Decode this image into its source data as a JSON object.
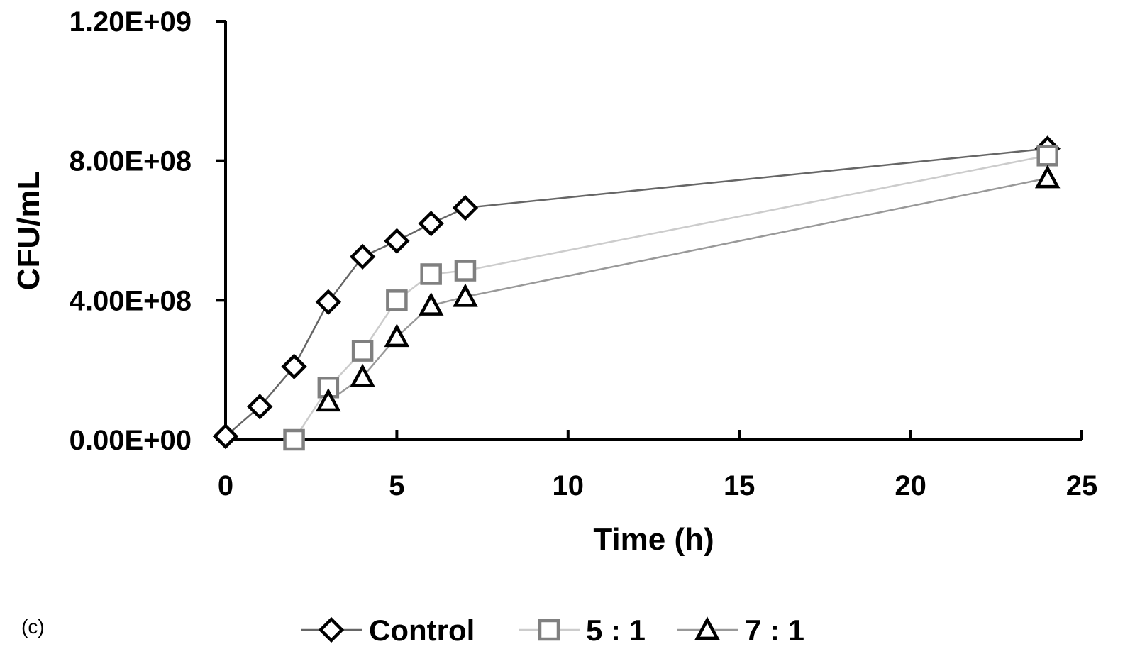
{
  "panel_label": "(c)",
  "chart_data": {
    "type": "line",
    "xlabel": "Time (h)",
    "ylabel": "CFU/mL",
    "xlim": [
      0,
      25
    ],
    "ylim": [
      0,
      1200000000
    ],
    "x_ticks": [
      0,
      5,
      10,
      15,
      20,
      25
    ],
    "x_tick_labels": [
      "0",
      "5",
      "10",
      "15",
      "20",
      "25"
    ],
    "y_ticks": [
      0,
      400000000,
      800000000,
      1200000000
    ],
    "y_tick_labels": [
      "0.00E+00",
      "4.00E+08",
      "8.00E+08",
      "1.20E+09"
    ],
    "grid": false,
    "legend_position": "bottom",
    "series": [
      {
        "name": "Control",
        "marker": "diamond",
        "line_color": "#666666",
        "marker_color": "#000000",
        "x": [
          0,
          1,
          2,
          3,
          4,
          5,
          6,
          7,
          24
        ],
        "y": [
          10000000,
          95000000,
          210000000,
          395000000,
          525000000,
          570000000,
          620000000,
          665000000,
          835000000
        ]
      },
      {
        "name": "5 : 1",
        "marker": "square",
        "line_color": "#cccccc",
        "marker_color": "#808080",
        "x": [
          2,
          3,
          4,
          5,
          6,
          7,
          24
        ],
        "y": [
          0,
          150000000,
          255000000,
          400000000,
          475000000,
          485000000,
          815000000
        ]
      },
      {
        "name": "7 : 1",
        "marker": "triangle",
        "line_color": "#999999",
        "marker_color": "#000000",
        "x": [
          3,
          4,
          5,
          6,
          7,
          24
        ],
        "y": [
          110000000,
          180000000,
          295000000,
          385000000,
          410000000,
          750000000
        ]
      }
    ]
  }
}
